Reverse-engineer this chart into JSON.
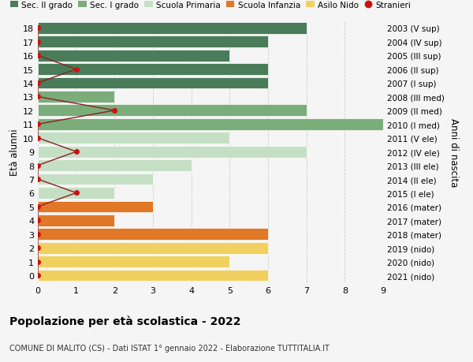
{
  "ages": [
    18,
    17,
    16,
    15,
    14,
    13,
    12,
    11,
    10,
    9,
    8,
    7,
    6,
    5,
    4,
    3,
    2,
    1,
    0
  ],
  "right_labels": [
    "2003 (V sup)",
    "2004 (IV sup)",
    "2005 (III sup)",
    "2006 (II sup)",
    "2007 (I sup)",
    "2008 (III med)",
    "2009 (II med)",
    "2010 (I med)",
    "2011 (V ele)",
    "2012 (IV ele)",
    "2013 (III ele)",
    "2014 (II ele)",
    "2015 (I ele)",
    "2016 (mater)",
    "2017 (mater)",
    "2018 (mater)",
    "2019 (nido)",
    "2020 (nido)",
    "2021 (nido)"
  ],
  "bar_values": [
    7,
    6,
    5,
    6,
    6,
    2,
    7,
    9,
    5,
    7,
    4,
    3,
    2,
    3,
    2,
    6,
    6,
    5,
    6
  ],
  "bar_colors": [
    "#4a7c59",
    "#4a7c59",
    "#4a7c59",
    "#4a7c59",
    "#4a7c59",
    "#7aad7a",
    "#7aad7a",
    "#7aad7a",
    "#c5dfc5",
    "#c5dfc5",
    "#c5dfc5",
    "#c5dfc5",
    "#c5dfc5",
    "#e07828",
    "#e07828",
    "#e07828",
    "#f0d060",
    "#f0d060",
    "#f0d060"
  ],
  "stranieri_x": [
    0,
    0,
    0,
    1,
    0,
    0,
    2,
    0,
    0,
    1,
    0,
    0,
    1,
    0,
    0,
    0,
    0,
    0,
    0
  ],
  "stranieri_ages": [
    18,
    17,
    16,
    15,
    14,
    13,
    12,
    11,
    10,
    9,
    8,
    7,
    6,
    5,
    4,
    3,
    2,
    1,
    0
  ],
  "legend_labels": [
    "Sec. II grado",
    "Sec. I grado",
    "Scuola Primaria",
    "Scuola Infanzia",
    "Asilo Nido",
    "Stranieri"
  ],
  "legend_colors_patch": [
    "#4a7c59",
    "#7aad7a",
    "#c5dfc5",
    "#e07828",
    "#f0d060"
  ],
  "stranieri_color": "#cc1111",
  "stranieri_line_color": "#8b2020",
  "ylabel": "Età alunni",
  "right_ylabel": "Anni di nascita",
  "title": "Popolazione per età scolastica - 2022",
  "subtitle": "COMUNE DI MALITO (CS) - Dati ISTAT 1° gennaio 2022 - Elaborazione TUTTITALIA.IT",
  "xlim": [
    0,
    9
  ],
  "bg_color": "#f5f5f5",
  "grid_color": "#cccccc"
}
